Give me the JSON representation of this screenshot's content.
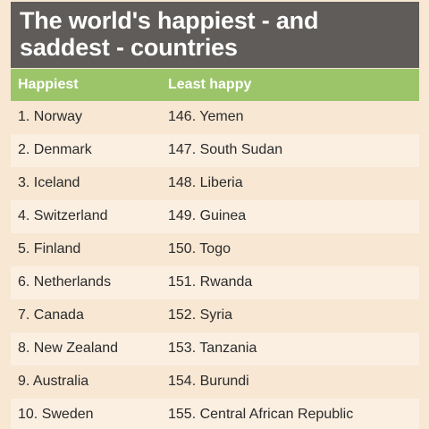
{
  "title": "The world's happiest - and saddest - countries",
  "columns": {
    "happiest": "Happiest",
    "least_happy": "Least happy"
  },
  "rows": [
    {
      "happiest": "1. Norway",
      "least_happy": "146. Yemen"
    },
    {
      "happiest": "2. Denmark",
      "least_happy": "147. South Sudan"
    },
    {
      "happiest": "3. Iceland",
      "least_happy": "148. Liberia"
    },
    {
      "happiest": "4. Switzerland",
      "least_happy": "149. Guinea"
    },
    {
      "happiest": "5. Finland",
      "least_happy": "150. Togo"
    },
    {
      "happiest": "6. Netherlands",
      "least_happy": "151. Rwanda"
    },
    {
      "happiest": "7. Canada",
      "least_happy": "152. Syria"
    },
    {
      "happiest": "8. New Zealand",
      "least_happy": "153. Tanzania"
    },
    {
      "happiest": "9. Australia",
      "least_happy": "154. Burundi"
    },
    {
      "happiest": "10. Sweden",
      "least_happy": "155. Central African Republic"
    }
  ],
  "colors": {
    "title_bg": "#5f5c59",
    "header_bg": "#9cc56a",
    "row_bg": "#f7e7d3",
    "row_alt_bg": "#fbefe2",
    "text": "#2b2b2b"
  }
}
